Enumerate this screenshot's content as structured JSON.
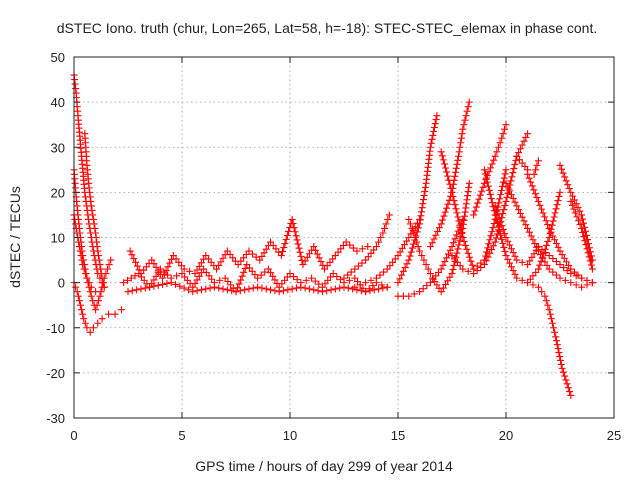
{
  "chart_data": {
    "type": "scatter",
    "title": "dSTEC Iono. truth (chur, Lon=265, Lat=58, h=-18): STEC-STEC_elemax in phase cont.",
    "xlabel": "GPS time / hours of day 299 of year 2014",
    "ylabel": "dSTEC  / TECUs",
    "xlim": [
      0,
      25
    ],
    "ylim": [
      -30,
      50
    ],
    "xticks": [
      0,
      5,
      10,
      15,
      20,
      25
    ],
    "yticks": [
      -30,
      -20,
      -10,
      0,
      10,
      20,
      30,
      40,
      50
    ],
    "grid": true,
    "marker": "+",
    "color": "#ff0000",
    "series": [
      {
        "x": [
          0.0,
          0.1,
          0.2,
          0.35,
          0.5,
          0.7,
          0.9,
          1.1,
          1.4
        ],
        "y": [
          46,
          42,
          36,
          28,
          20,
          13,
          7,
          2,
          -1
        ]
      },
      {
        "x": [
          0.0,
          0.1,
          0.25,
          0.4,
          0.6,
          0.8,
          1.0,
          1.2,
          1.4,
          1.7
        ],
        "y": [
          25,
          19,
          12,
          6,
          1,
          -3,
          -6,
          -3,
          1,
          5
        ]
      },
      {
        "x": [
          0.5,
          0.6,
          0.7,
          0.8,
          0.9,
          1.0,
          1.1,
          1.2,
          1.3,
          1.4
        ],
        "y": [
          33,
          26,
          21,
          17,
          14,
          11,
          7,
          4,
          1,
          -1
        ]
      },
      {
        "x": [
          0.0,
          0.1,
          0.25,
          0.4,
          0.6,
          0.8,
          1.0
        ],
        "y": [
          15,
          12,
          8,
          4,
          1,
          -1,
          -2
        ]
      },
      {
        "x": [
          0.0,
          0.15,
          0.3,
          0.45,
          0.6,
          0.75,
          0.9,
          1.1,
          1.3,
          1.6,
          1.9,
          2.2
        ],
        "y": [
          0,
          -2,
          -5,
          -8,
          -10,
          -11,
          -10,
          -9,
          -8,
          -7,
          -7,
          -6
        ]
      },
      {
        "x": [
          2.3,
          3.0,
          3.5,
          4.0,
          4.5,
          5.0,
          5.5,
          6.0,
          6.5,
          7.0,
          7.5,
          8.0,
          8.5,
          9.0,
          9.5,
          10.0,
          10.5,
          11.0,
          11.5,
          12.0,
          12.5,
          13.0,
          13.5,
          14.0,
          14.5
        ],
        "y": [
          0,
          2,
          -1,
          3,
          1,
          2,
          -1,
          3,
          0,
          1,
          -2,
          4,
          1,
          3,
          -1,
          2,
          0,
          1,
          -1,
          2,
          0,
          1,
          -2,
          0,
          -1
        ]
      },
      {
        "x": [
          2.5,
          3.5,
          4.5,
          5.5,
          6.5,
          7.5,
          8.5,
          9.5,
          10.5,
          11.5,
          12.5,
          13.5,
          14.5
        ],
        "y": [
          -2,
          -1,
          0,
          -2,
          -1,
          -2,
          -1,
          -2,
          -1,
          -2,
          -1,
          -2,
          -1
        ]
      },
      {
        "x": [
          2.6,
          3.1,
          3.6,
          4.1,
          4.6,
          5.1,
          5.6,
          6.1,
          6.6,
          7.1,
          7.6,
          8.1,
          8.6,
          9.1,
          9.6,
          10.1,
          10.6,
          11.1,
          11.6,
          12.1,
          12.6,
          13.1,
          13.6
        ],
        "y": [
          7,
          2,
          5,
          1,
          6,
          3,
          2,
          6,
          3,
          7,
          4,
          7,
          5,
          9,
          6,
          14,
          4,
          8,
          3,
          6,
          9,
          7,
          8
        ]
      },
      {
        "x": [
          12.5,
          13.0,
          13.5,
          14.0,
          14.3,
          14.6
        ],
        "y": [
          1,
          3,
          5,
          8,
          11,
          15
        ]
      },
      {
        "x": [
          13.0,
          13.5,
          14.0,
          14.5,
          15.0,
          15.5,
          16.0
        ],
        "y": [
          -1,
          0,
          1,
          3,
          6,
          10,
          14
        ]
      },
      {
        "x": [
          15.0,
          15.5,
          16.0,
          16.3,
          16.5,
          16.8
        ],
        "y": [
          0,
          5,
          13,
          22,
          30,
          37
        ]
      },
      {
        "x": [
          15.0,
          15.5,
          16.0,
          16.5,
          17.0,
          17.5,
          18.0
        ],
        "y": [
          -3,
          -3,
          -2,
          0,
          3,
          8,
          14
        ]
      },
      {
        "x": [
          15.5,
          15.8,
          16.0,
          16.3,
          16.6,
          17.0,
          17.5,
          18.0,
          18.3
        ],
        "y": [
          14,
          10,
          7,
          4,
          1,
          -2,
          2,
          12,
          22
        ]
      },
      {
        "x": [
          16.5,
          17.0,
          17.5,
          17.8,
          18.0,
          18.3
        ],
        "y": [
          8,
          13,
          20,
          28,
          34,
          40
        ]
      },
      {
        "x": [
          17.0,
          17.5,
          18.0,
          18.5,
          19.0,
          19.5,
          20.0
        ],
        "y": [
          29,
          20,
          10,
          3,
          5,
          14,
          25
        ]
      },
      {
        "x": [
          17.5,
          18.0,
          18.5,
          19.0,
          19.5,
          20.0,
          20.5,
          21.0
        ],
        "y": [
          6,
          3,
          2,
          4,
          9,
          18,
          28,
          33
        ]
      },
      {
        "x": [
          18.5,
          19.0,
          19.5,
          19.8,
          20.0
        ],
        "y": [
          15,
          22,
          28,
          32,
          35
        ]
      },
      {
        "x": [
          19.0,
          19.5,
          20.0,
          20.5,
          21.0,
          21.5,
          22.0,
          22.5
        ],
        "y": [
          25,
          15,
          6,
          1,
          0,
          3,
          10,
          20
        ]
      },
      {
        "x": [
          19.5,
          20.0,
          20.5,
          21.0,
          21.5
        ],
        "y": [
          17,
          10,
          5,
          4,
          8
        ]
      },
      {
        "x": [
          20.0,
          20.5,
          21.0,
          21.5,
          22.0,
          22.5,
          23.0,
          23.5,
          24.0
        ],
        "y": [
          22,
          17,
          12,
          7,
          3,
          1,
          0,
          -1,
          0
        ]
      },
      {
        "x": [
          20.5,
          21.0,
          21.3,
          21.5
        ],
        "y": [
          28,
          25,
          24,
          27
        ]
      },
      {
        "x": [
          21.5,
          22.0,
          22.5,
          23.0,
          23.5,
          24.0
        ],
        "y": [
          8,
          6,
          4,
          2,
          1,
          0
        ]
      },
      {
        "x": [
          21.0,
          21.5,
          22.0,
          22.5,
          23.0,
          23.5,
          24.0
        ],
        "y": [
          24,
          18,
          12,
          7,
          3,
          1,
          0
        ]
      },
      {
        "x": [
          21.0,
          21.5,
          21.8,
          22.0,
          22.3,
          22.6,
          23.0
        ],
        "y": [
          0,
          -1,
          -3,
          -6,
          -12,
          -19,
          -25
        ]
      },
      {
        "x": [
          22.5,
          23.0,
          23.5,
          24.0
        ],
        "y": [
          26,
          20,
          15,
          5
        ]
      },
      {
        "x": [
          23.0,
          23.5,
          24.0
        ],
        "y": [
          18,
          12,
          3
        ]
      }
    ]
  }
}
